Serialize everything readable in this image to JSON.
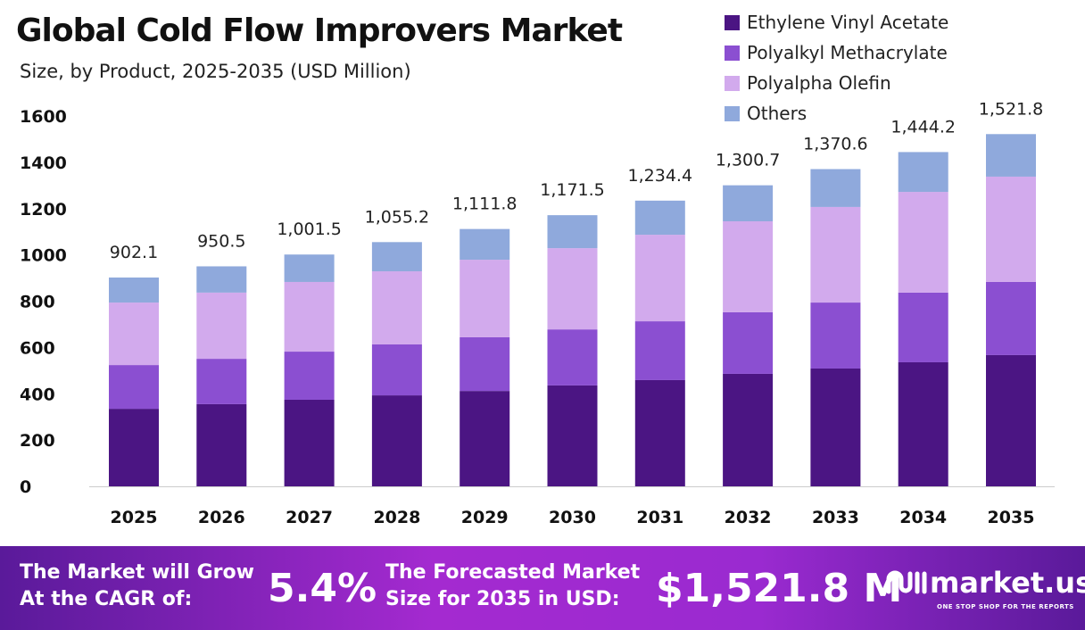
{
  "title": "Global Cold Flow Improvers Market",
  "subtitle": "Size, by Product, 2025-2035 (USD Million)",
  "chart_data": {
    "type": "bar",
    "stacked": true,
    "categories": [
      "2025",
      "2026",
      "2027",
      "2028",
      "2029",
      "2030",
      "2031",
      "2032",
      "2033",
      "2034",
      "2035"
    ],
    "series": [
      {
        "name": "Ethylene Vinyl Acetate",
        "color": "#4b1583",
        "values": [
          335,
          355,
          374,
          393,
          412,
          436,
          459,
          486,
          509,
          536,
          567
        ]
      },
      {
        "name": "Polyalkyl Methacrylate",
        "color": "#8b4fd1",
        "values": [
          189,
          196,
          208,
          220,
          232,
          242,
          254,
          266,
          285,
          301,
          316
        ]
      },
      {
        "name": "Polyalpha Olefin",
        "color": "#d2aaed",
        "values": [
          270,
          286,
          301,
          316,
          335,
          351,
          374,
          393,
          413,
          435,
          455
        ]
      },
      {
        "name": "Others",
        "color": "#8fa9dc",
        "values": [
          108.1,
          113.5,
          118.5,
          126.2,
          132.8,
          142.5,
          147.4,
          155.7,
          163.6,
          172.2,
          183.8
        ]
      }
    ],
    "totals": [
      "902.1",
      "950.5",
      "1,001.5",
      "1,055.2",
      "1,111.8",
      "1,171.5",
      "1,234.4",
      "1,300.7",
      "1,370.6",
      "1,444.2",
      "1,521.8"
    ],
    "yticks": [
      "0",
      "200",
      "400",
      "600",
      "800",
      "1000",
      "1200",
      "1400",
      "1600"
    ],
    "ylim": [
      0,
      1600
    ],
    "grid": false,
    "legend": "top-right"
  },
  "banner": {
    "cagr_label_1": "The Market will Grow",
    "cagr_label_2": "At the CAGR of:",
    "cagr": "5.4%",
    "forecast_label_1": "The Forecasted Market",
    "forecast_label_2": "Size for 2035 in USD:",
    "forecast": "$1,521.8 M",
    "logo": "market.us",
    "tagline": "ONE STOP SHOP FOR THE REPORTS"
  }
}
